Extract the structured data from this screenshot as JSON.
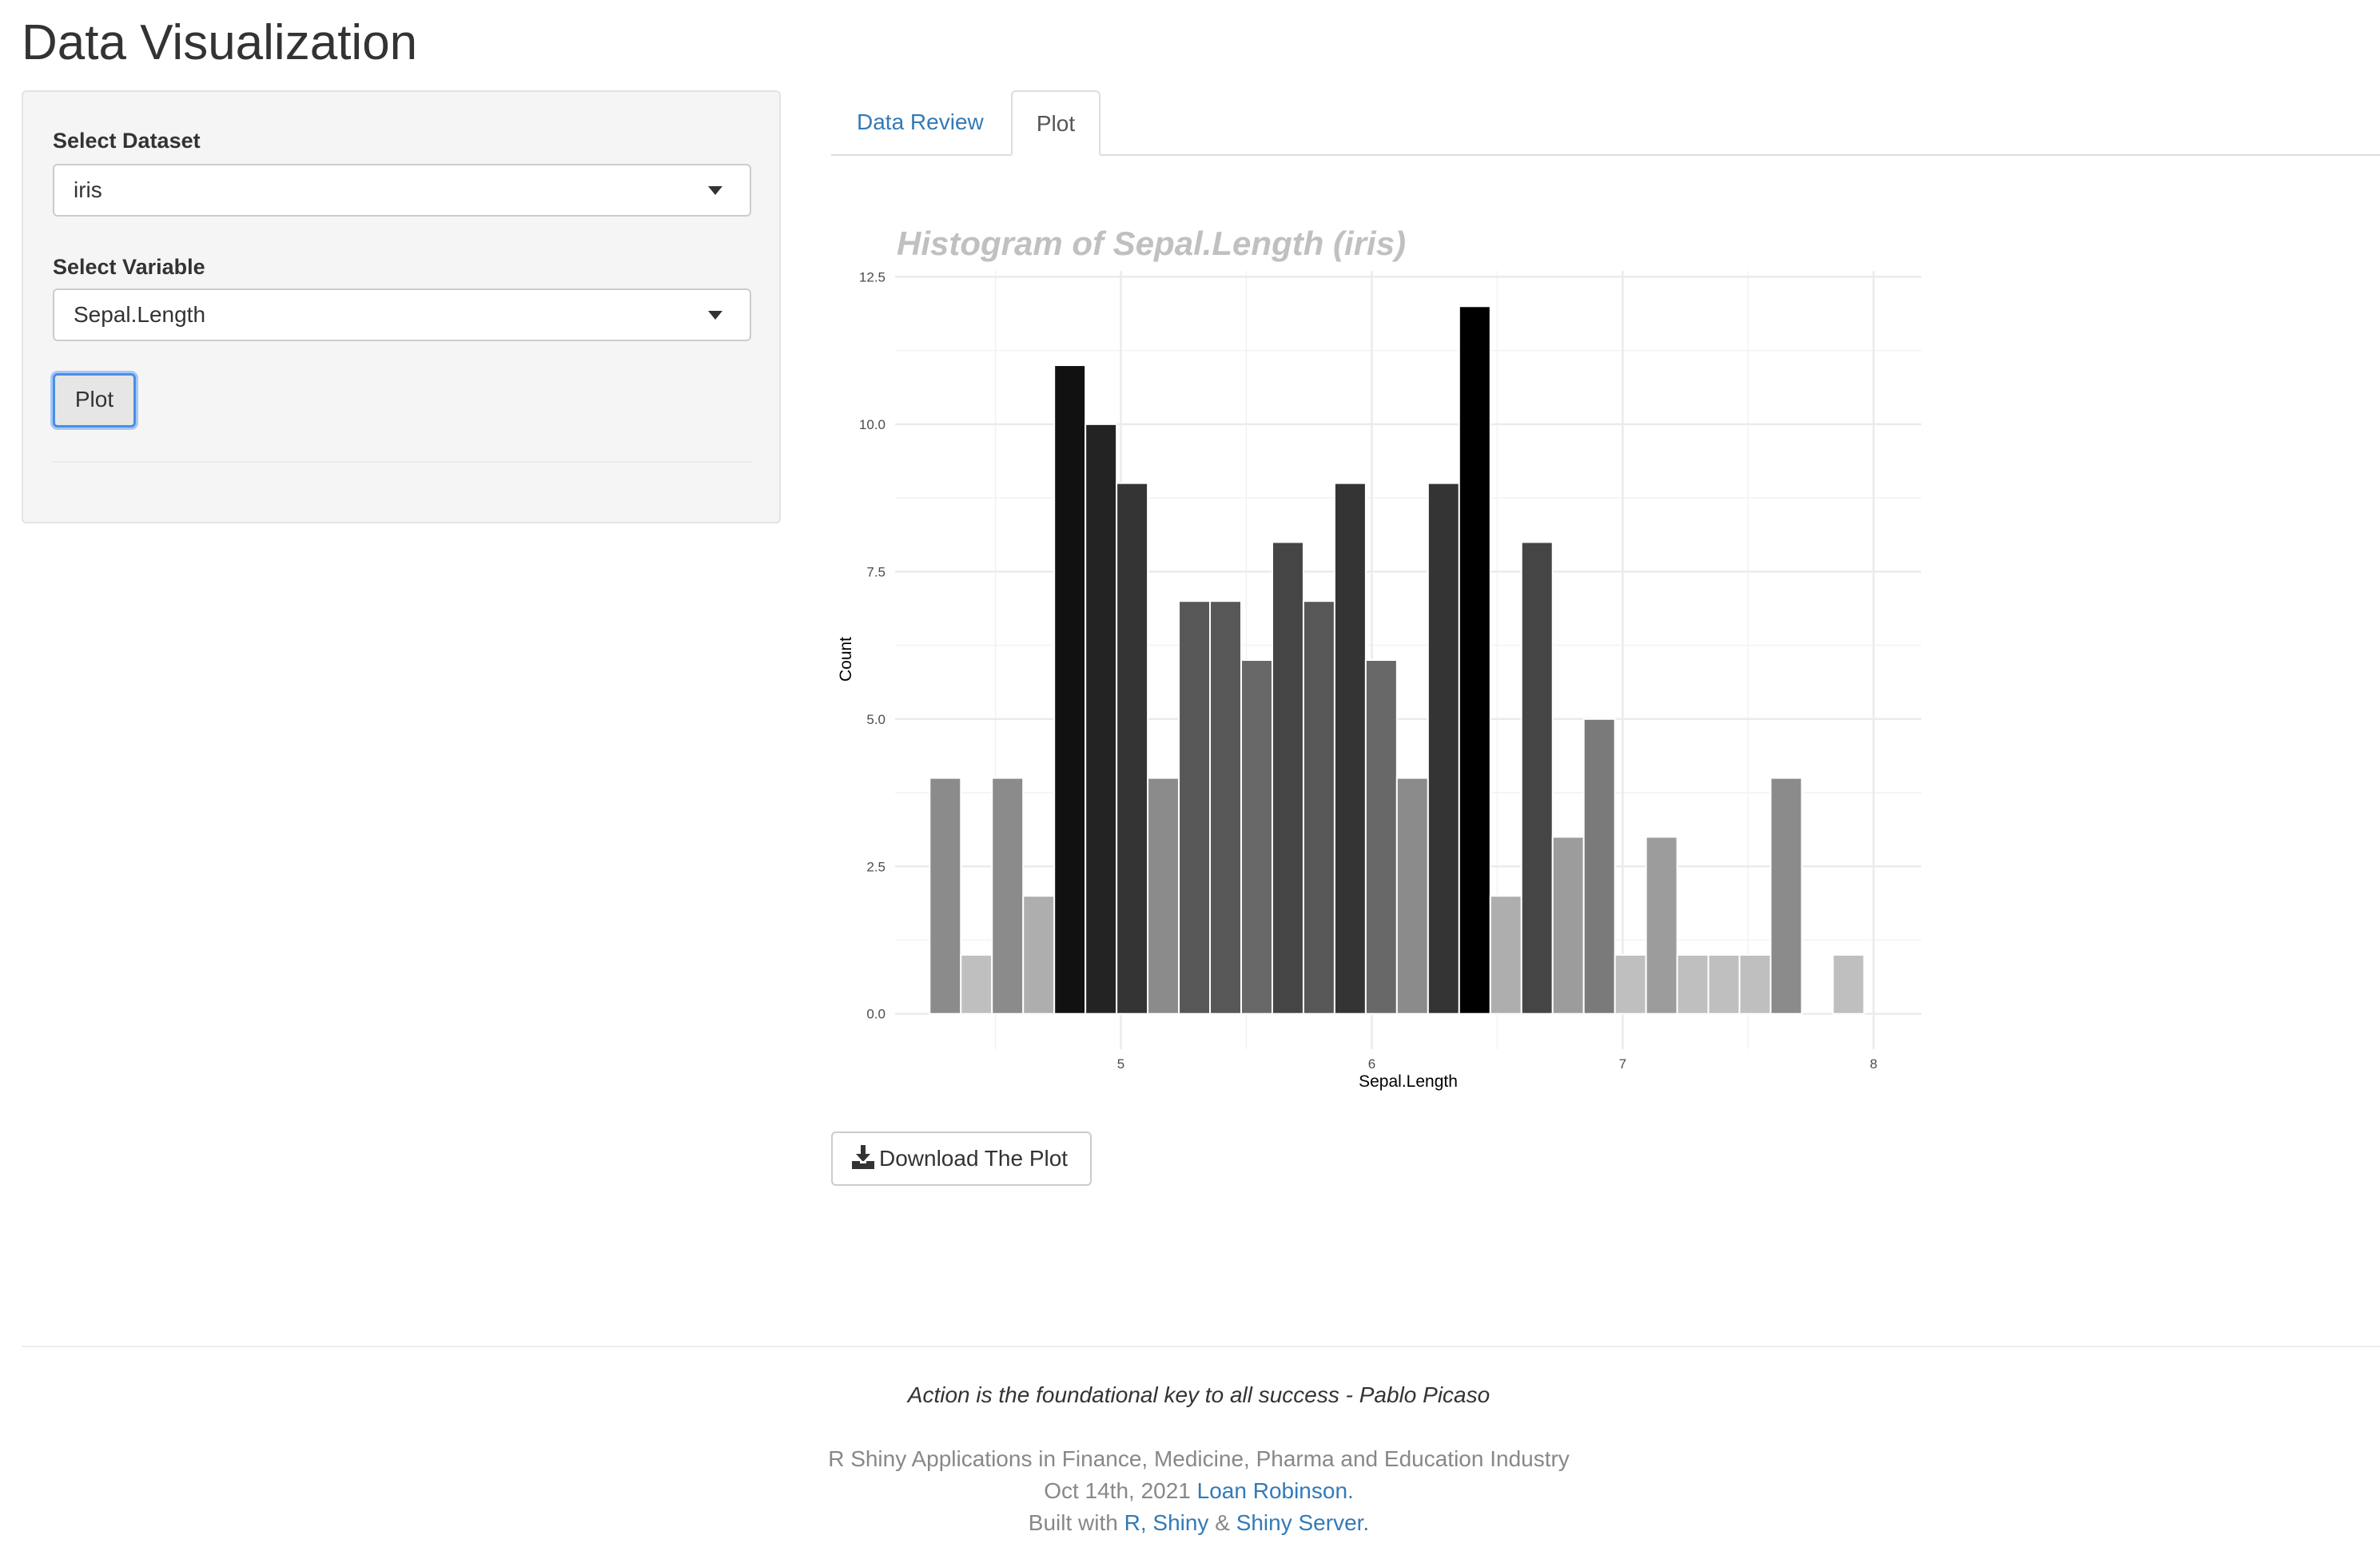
{
  "header": {
    "title": "Data Visualization"
  },
  "sidebar": {
    "dataset_label": "Select Dataset",
    "dataset_value": "iris",
    "variable_label": "Select Variable",
    "variable_value": "Sepal.Length",
    "plot_button": "Plot"
  },
  "tabs": [
    {
      "label": "Data Review",
      "active": false
    },
    {
      "label": "Plot",
      "active": true
    }
  ],
  "download_button": {
    "label": "Download The Plot",
    "icon": "download-icon"
  },
  "footer": {
    "quote": "Action is the foundational key to all success - Pablo Picaso",
    "line1": "R Shiny Applications in Finance, Medicine, Pharma and Education Industry",
    "line2_text": "Oct 14th, 2021",
    "line2_link": "Loan Robinson.",
    "line3_text": "Built with",
    "line3_link1": "R, Shiny",
    "line3_amp": "&",
    "line3_link2": "Shiny Server."
  },
  "colors": {
    "link": "#337ab7",
    "title_gray": "#c0c0c0",
    "focus": "#4a8ee8"
  },
  "chart_data": {
    "type": "bar",
    "title": "Histogram of Sepal.Length (iris)",
    "xlabel": "Sepal.Length",
    "ylabel": "Count",
    "bin_start": 4.3,
    "bin_end": 7.9,
    "counts": [
      4,
      1,
      4,
      2,
      11,
      10,
      9,
      4,
      7,
      7,
      6,
      8,
      7,
      9,
      6,
      4,
      9,
      12,
      2,
      8,
      3,
      5,
      1,
      3,
      1,
      1,
      1,
      4,
      0,
      1
    ],
    "fill": "grayscale by count (darker = higher)",
    "xlim": [
      4.1,
      8.19
    ],
    "ylim": [
      -0.6,
      12.6
    ],
    "x_ticks": [
      "5",
      "6",
      "7",
      "8"
    ],
    "y_ticks": [
      "0.0",
      "2.5",
      "5.0",
      "7.5",
      "10.0",
      "12.5"
    ],
    "grid": true,
    "legend": "none"
  }
}
